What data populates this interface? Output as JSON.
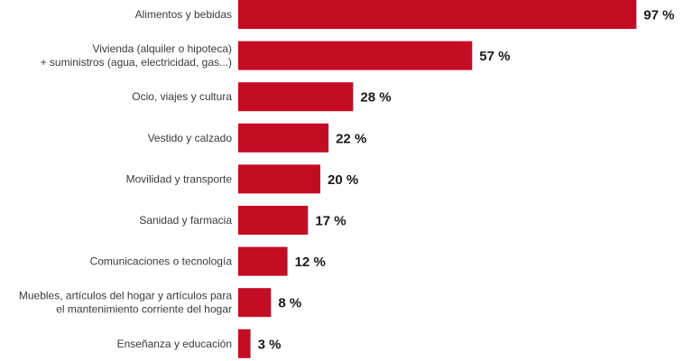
{
  "chart_data": {
    "type": "bar",
    "orientation": "horizontal",
    "categories": [
      [
        "Alimentos y bebidas"
      ],
      [
        "Vivienda (alquiler o hipoteca)",
        "+ suministros (agua, electricidad, gas...)"
      ],
      [
        "Ocio, viajes y cultura"
      ],
      [
        "Vestido y calzado"
      ],
      [
        "Movilidad y transporte"
      ],
      [
        "Sanidad y farmacia"
      ],
      [
        "Comunicaciones o tecnología"
      ],
      [
        "Muebles, artículos del hogar y artículos para",
        "el mantenimiento corriente del hogar"
      ],
      [
        "Enseñanza y educación"
      ]
    ],
    "values": [
      97,
      57,
      28,
      22,
      20,
      17,
      12,
      8,
      3
    ],
    "value_labels": [
      "97 %",
      "57 %",
      "28 %",
      "22 %",
      "20 %",
      "17 %",
      "12 %",
      "8 %",
      "3 %"
    ],
    "xlim": [
      0,
      100
    ],
    "grid": false,
    "bar_color": "#c50c25",
    "title": "",
    "xlabel": "",
    "ylabel": ""
  }
}
